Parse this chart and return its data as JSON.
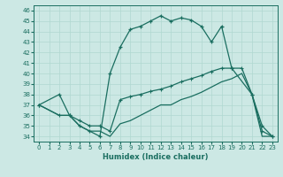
{
  "xlabel": "Humidex (Indice chaleur)",
  "bg_color": "#cce8e4",
  "line_color": "#1a6e60",
  "grid_color": "#b0d8d0",
  "xlim": [
    -0.5,
    23.5
  ],
  "ylim": [
    33.5,
    46.5
  ],
  "xticks": [
    0,
    1,
    2,
    3,
    4,
    5,
    6,
    7,
    8,
    9,
    10,
    11,
    12,
    13,
    14,
    15,
    16,
    17,
    18,
    19,
    20,
    21,
    22,
    23
  ],
  "yticks": [
    34,
    35,
    36,
    37,
    38,
    39,
    40,
    41,
    42,
    43,
    44,
    45,
    46
  ],
  "line1_x": [
    0,
    2,
    3,
    4,
    5,
    6,
    7,
    8,
    9,
    10,
    11,
    12,
    13,
    14,
    15,
    16,
    17,
    18,
    19,
    21,
    22,
    23
  ],
  "line1_y": [
    37.0,
    38.0,
    36.0,
    35.0,
    34.5,
    34.0,
    40.0,
    42.5,
    44.2,
    44.5,
    45.0,
    45.5,
    45.0,
    45.3,
    45.1,
    44.5,
    43.0,
    44.5,
    40.5,
    38.0,
    35.0,
    34.0
  ],
  "line2_x": [
    0,
    2,
    3,
    4,
    5,
    6,
    7,
    8,
    9,
    10,
    11,
    12,
    13,
    14,
    15,
    16,
    17,
    18,
    19,
    20,
    21,
    22,
    23
  ],
  "line2_y": [
    37.0,
    36.0,
    36.0,
    35.5,
    35.0,
    35.0,
    34.5,
    37.5,
    37.8,
    38.0,
    38.3,
    38.5,
    38.8,
    39.2,
    39.5,
    39.8,
    40.2,
    40.5,
    40.5,
    40.5,
    38.0,
    34.5,
    34.0
  ],
  "line3_x": [
    0,
    2,
    3,
    4,
    5,
    6,
    7,
    8,
    9,
    10,
    11,
    12,
    13,
    14,
    15,
    16,
    17,
    18,
    19,
    20,
    21,
    22,
    23
  ],
  "line3_y": [
    37.0,
    36.0,
    36.0,
    35.0,
    34.5,
    34.5,
    34.0,
    35.2,
    35.5,
    36.0,
    36.5,
    37.0,
    37.0,
    37.5,
    37.8,
    38.2,
    38.7,
    39.2,
    39.5,
    40.0,
    38.0,
    34.0,
    34.0
  ]
}
